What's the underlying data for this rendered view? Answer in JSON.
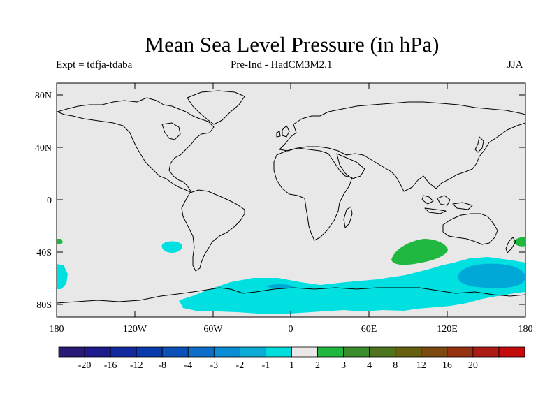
{
  "title": "Mean Sea Level Pressure (in hPa)",
  "experiment": "Expt = tdfja-tdaba",
  "subtitle": "Pre-Ind - HadCM3M2.1",
  "season": "JJA",
  "map": {
    "background_color": "#e8e8e8",
    "coastline_color": "#000000",
    "lat_ticks": [
      "80N",
      "40N",
      "0",
      "40S",
      "80S"
    ],
    "lon_ticks": [
      "180",
      "120W",
      "60W",
      "0",
      "60E",
      "120E",
      "180"
    ],
    "anomaly_regions": [
      {
        "name": "southern-ocean-negative",
        "level": "-1 to -2",
        "color": "#00e0e0"
      },
      {
        "name": "south-pacific-negative",
        "level": "-2 to -3",
        "color": "#00a8d8"
      },
      {
        "name": "south-indian-ocean-positive",
        "level": "1 to 2",
        "color": "#20b840"
      }
    ]
  },
  "colorbar": {
    "colors": [
      "#2a1a78",
      "#1c1a8c",
      "#12289e",
      "#0a3aac",
      "#0a52b8",
      "#0c6ec8",
      "#0a8ed6",
      "#0aacd6",
      "#00dcdc",
      "#e8e8e8",
      "#20b840",
      "#3c8c30",
      "#4e7420",
      "#666010",
      "#7c4a10",
      "#943212",
      "#ac1c14",
      "#c40a0a"
    ],
    "labels": [
      "-20",
      "-16",
      "-12",
      "-8",
      "-4",
      "-3",
      "-2",
      "-1",
      "1",
      "2",
      "3",
      "4",
      "8",
      "12",
      "16",
      "20"
    ]
  }
}
